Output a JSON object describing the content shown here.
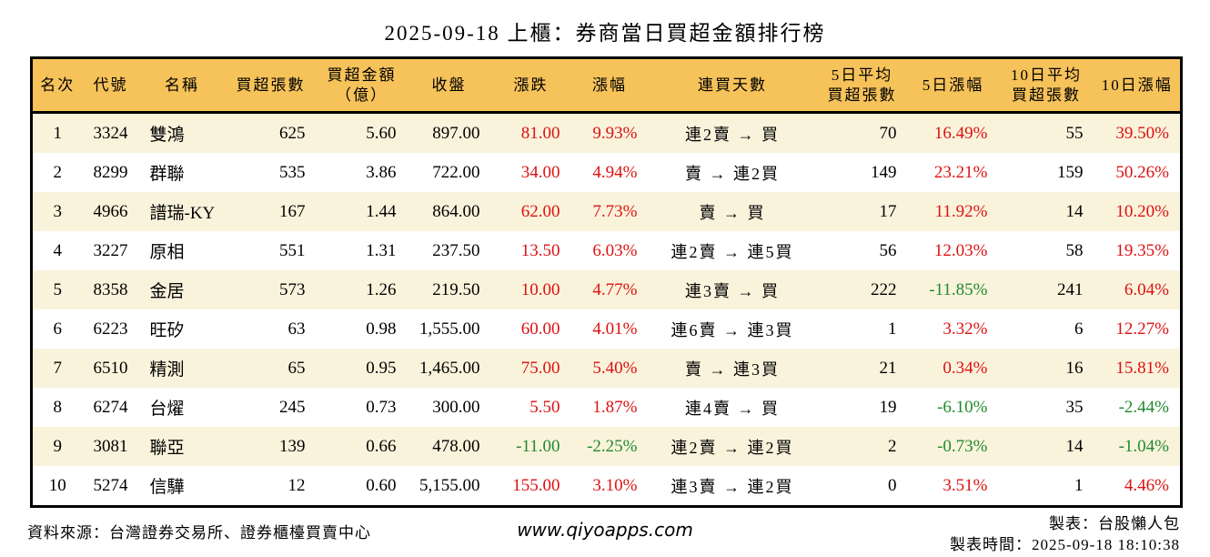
{
  "title": "2025-09-18 上櫃：券商當日買超金額排行榜",
  "colors": {
    "up": "#dd1111",
    "down": "#1e8b2d",
    "header_bg": "#f6c25a",
    "row_alt_bg": "#faf3dc"
  },
  "table": {
    "headers": [
      "名次",
      "代號",
      "名稱",
      "買超張數",
      "買超金額\n（億）",
      "收盤",
      "漲跌",
      "漲幅",
      "連買天數",
      "5日平均\n買超張數",
      "5日漲幅",
      "10日平均\n買超張數",
      "10日漲幅"
    ],
    "rows": [
      [
        "1",
        "3324",
        "雙鴻",
        "625",
        "5.60",
        "897.00",
        "81.00",
        "9.93%",
        "連2賣 → 買",
        "70",
        "16.49%",
        "55",
        "39.50%"
      ],
      [
        "2",
        "8299",
        "群聯",
        "535",
        "3.86",
        "722.00",
        "34.00",
        "4.94%",
        "賣 → 連2買",
        "149",
        "23.21%",
        "159",
        "50.26%"
      ],
      [
        "3",
        "4966",
        "譜瑞-KY",
        "167",
        "1.44",
        "864.00",
        "62.00",
        "7.73%",
        "賣 → 買",
        "17",
        "11.92%",
        "14",
        "10.20%"
      ],
      [
        "4",
        "3227",
        "原相",
        "551",
        "1.31",
        "237.50",
        "13.50",
        "6.03%",
        "連2賣 → 連5買",
        "56",
        "12.03%",
        "58",
        "19.35%"
      ],
      [
        "5",
        "8358",
        "金居",
        "573",
        "1.26",
        "219.50",
        "10.00",
        "4.77%",
        "連3賣 → 買",
        "222",
        "-11.85%",
        "241",
        "6.04%"
      ],
      [
        "6",
        "6223",
        "旺矽",
        "63",
        "0.98",
        "1,555.00",
        "60.00",
        "4.01%",
        "連6賣 → 連3買",
        "1",
        "3.32%",
        "6",
        "12.27%"
      ],
      [
        "7",
        "6510",
        "精測",
        "65",
        "0.95",
        "1,465.00",
        "75.00",
        "5.40%",
        "賣 → 連3買",
        "21",
        "0.34%",
        "16",
        "15.81%"
      ],
      [
        "8",
        "6274",
        "台燿",
        "245",
        "0.73",
        "300.00",
        "5.50",
        "1.87%",
        "連4賣 → 買",
        "19",
        "-6.10%",
        "35",
        "-2.44%"
      ],
      [
        "9",
        "3081",
        "聯亞",
        "139",
        "0.66",
        "478.00",
        "-11.00",
        "-2.25%",
        "連2賣 → 連2買",
        "2",
        "-0.73%",
        "14",
        "-1.04%"
      ],
      [
        "10",
        "5274",
        "信驊",
        "12",
        "0.60",
        "5,155.00",
        "155.00",
        "3.10%",
        "連3賣 → 連2買",
        "0",
        "3.51%",
        "1",
        "4.46%"
      ]
    ]
  },
  "footer": {
    "source": "資料來源：台灣證券交易所、證券櫃檯買賣中心",
    "website": "www.qiyoapps.com",
    "credit": "製表：台股懶人包",
    "timestamp": "製表時間：2025-09-18 18:10:38"
  }
}
